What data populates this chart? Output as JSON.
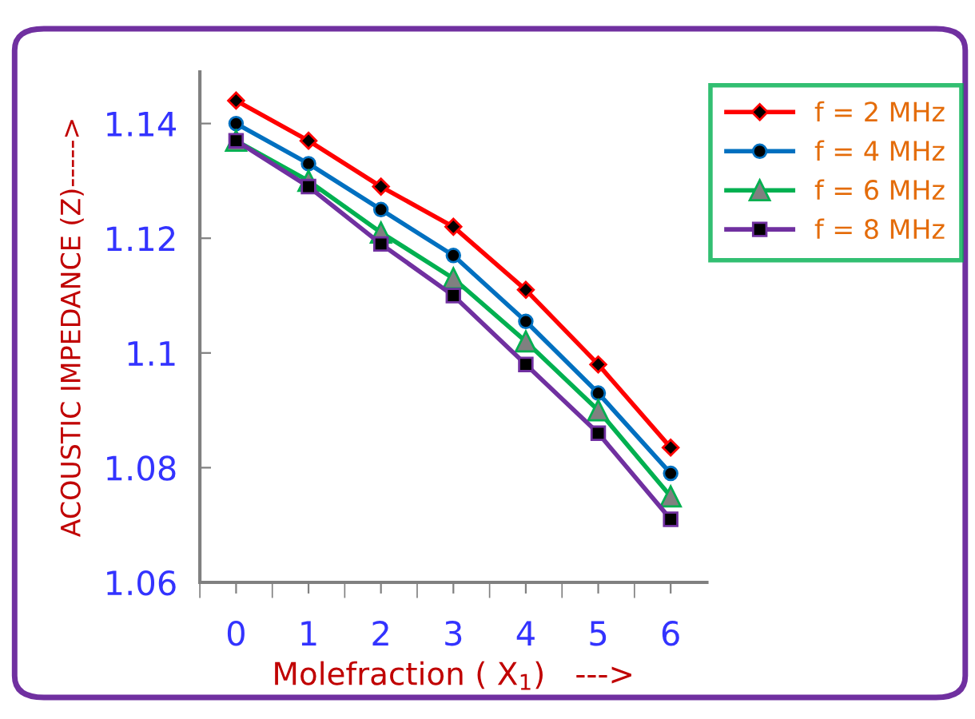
{
  "chart_data": {
    "type": "line",
    "xlabel": "Molefraction ( X$_{1}$)   --->",
    "ylabel": "ACOUSTIC IMPEDANCE (Z)----->",
    "categories": [
      "0",
      "1",
      "2",
      "3",
      "4",
      "5",
      "6"
    ],
    "series": [
      {
        "name": "f = 2 MHz",
        "color": "#ff0000",
        "marker": "diamond",
        "values": [
          1.144,
          1.137,
          1.129,
          1.122,
          1.111,
          1.098,
          1.0835
        ]
      },
      {
        "name": "f = 4 MHz",
        "color": "#0070c0",
        "marker": "circle",
        "values": [
          1.14,
          1.133,
          1.125,
          1.117,
          1.1055,
          1.093,
          1.079
        ]
      },
      {
        "name": "f = 6 MHz",
        "color": "#00b050",
        "marker": "triangle",
        "values": [
          1.137,
          1.13,
          1.121,
          1.113,
          1.102,
          1.09,
          1.075
        ]
      },
      {
        "name": "f = 8 MHz",
        "color": "#7030a0",
        "marker": "square",
        "values": [
          1.137,
          1.129,
          1.119,
          1.11,
          1.098,
          1.086,
          1.071
        ]
      }
    ],
    "ylim": [
      1.06,
      1.149
    ],
    "yticks": [
      1.06,
      1.08,
      1.1,
      1.12,
      1.14
    ],
    "grid": false,
    "legend": "top right",
    "line_style": "solid"
  }
}
